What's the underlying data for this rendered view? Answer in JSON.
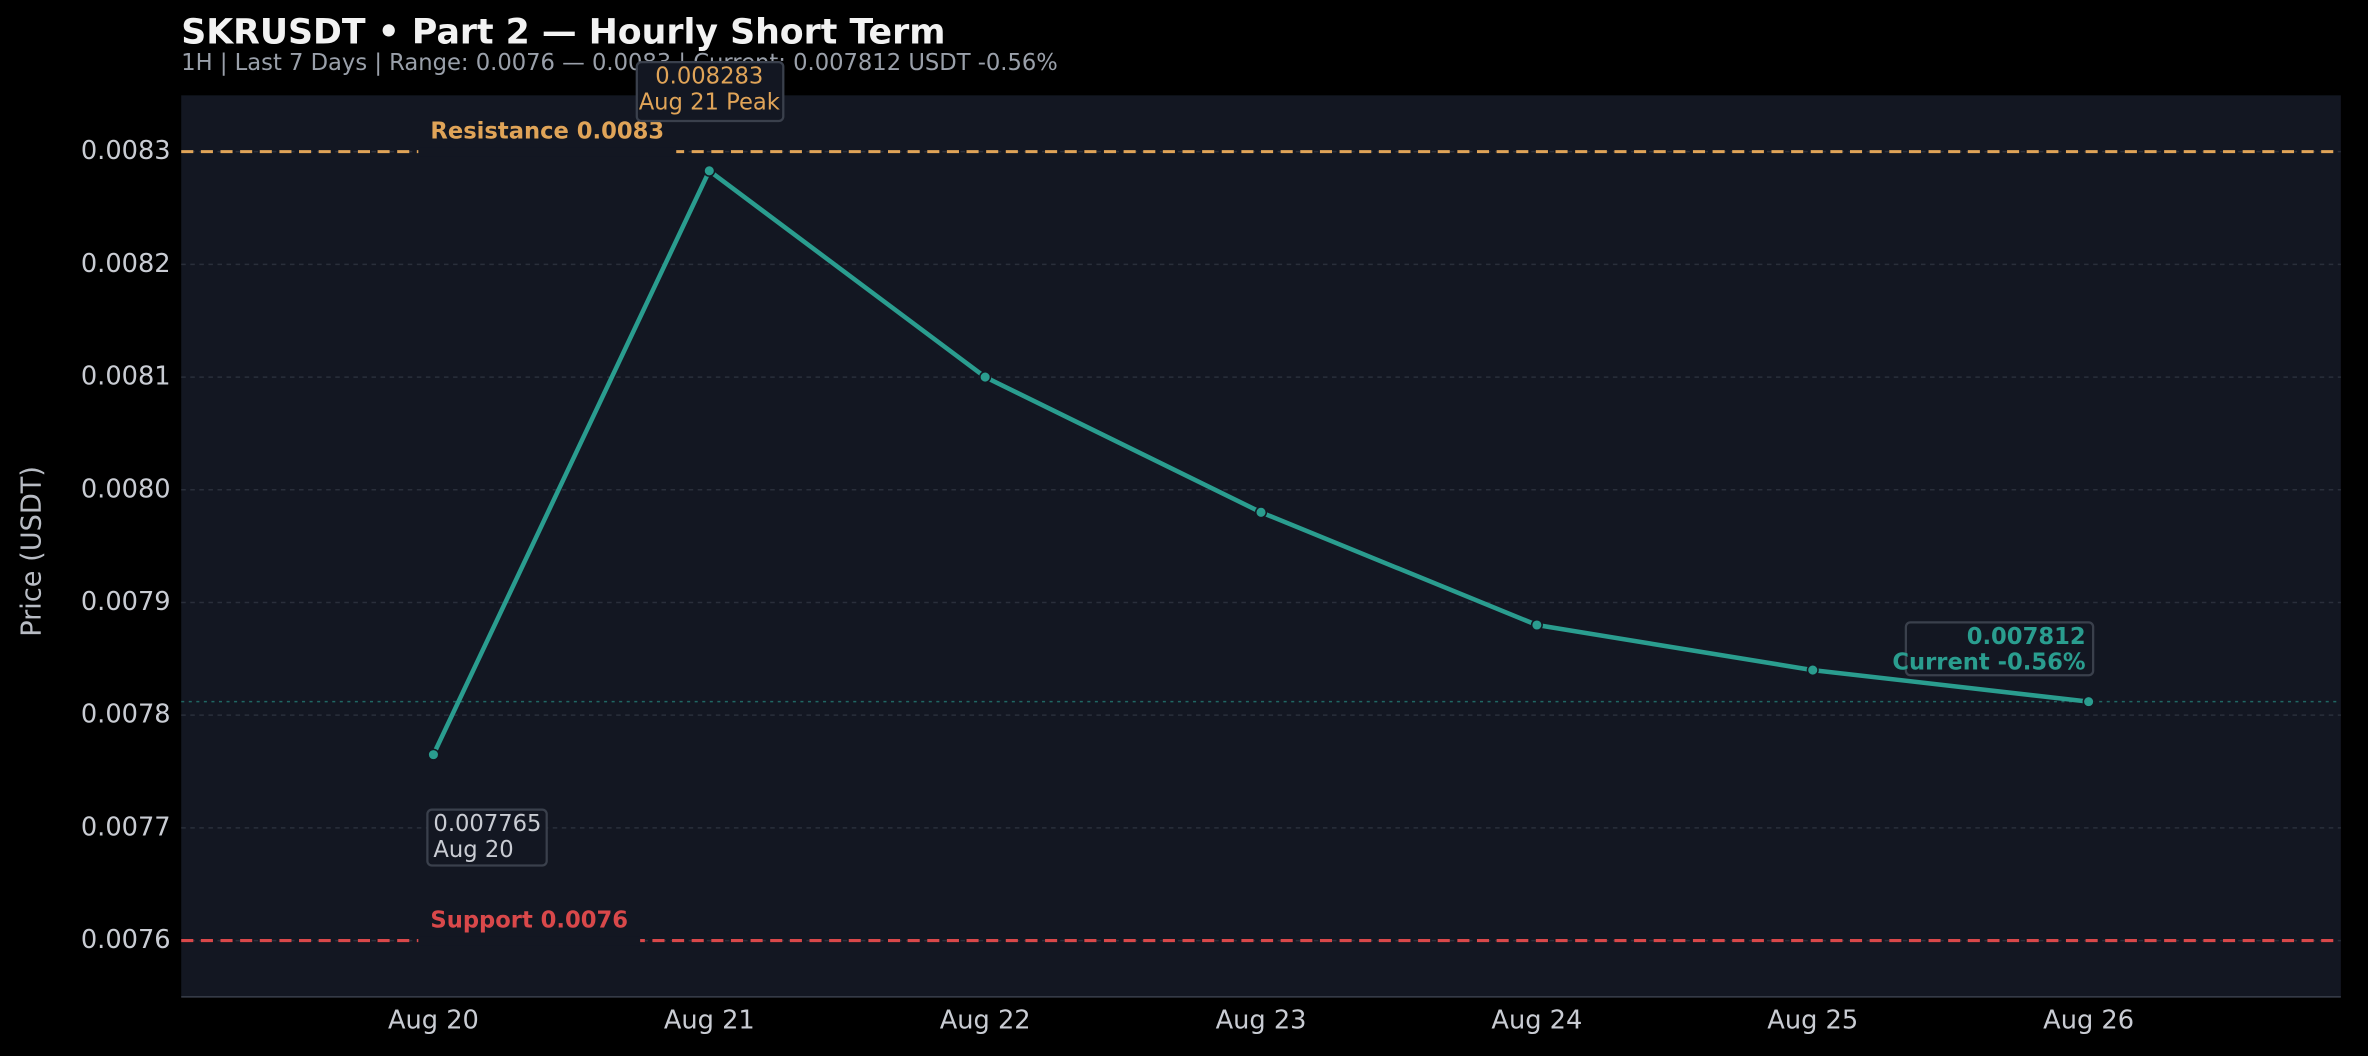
{
  "chart_data": {
    "type": "line",
    "title": "SKRUSDT • Part 2 — Hourly Short Term",
    "subtitle": "1H | Last 7 Days | Range: 0.0076 — 0.0083 | Current: 0.007812 USDT  -0.56%",
    "y_label": "Price (USDT)",
    "categories": [
      "Aug 20",
      "Aug 21",
      "Aug 22",
      "Aug 23",
      "Aug 24",
      "Aug 25",
      "Aug 26"
    ],
    "series": [
      {
        "name": "SKRUSDT",
        "color": "#2a9d8f",
        "values": [
          0.007765,
          0.008283,
          0.0081,
          0.00798,
          0.00788,
          0.00784,
          0.007812
        ]
      }
    ],
    "ylim": [
      0.00755,
      0.00835
    ],
    "yticks": [
      0.0076,
      0.0077,
      0.0078,
      0.0079,
      {
        "value": 0.008,
        "label": "0.0080"
      },
      0.0081,
      0.0082,
      0.0083
    ],
    "grid": true,
    "reference_lines": [
      {
        "label": "Resistance 0.0083",
        "value": 0.0083,
        "color": "#e0a458"
      },
      {
        "label": "Support 0.0076",
        "value": 0.0076,
        "color": "#d9484a"
      }
    ],
    "annotations": {
      "start": [
        "0.007765",
        "Aug 20"
      ],
      "peak": [
        "0.008283",
        "Aug 21 Peak"
      ],
      "current": [
        "0.007812",
        "Current -0.56%"
      ]
    }
  }
}
